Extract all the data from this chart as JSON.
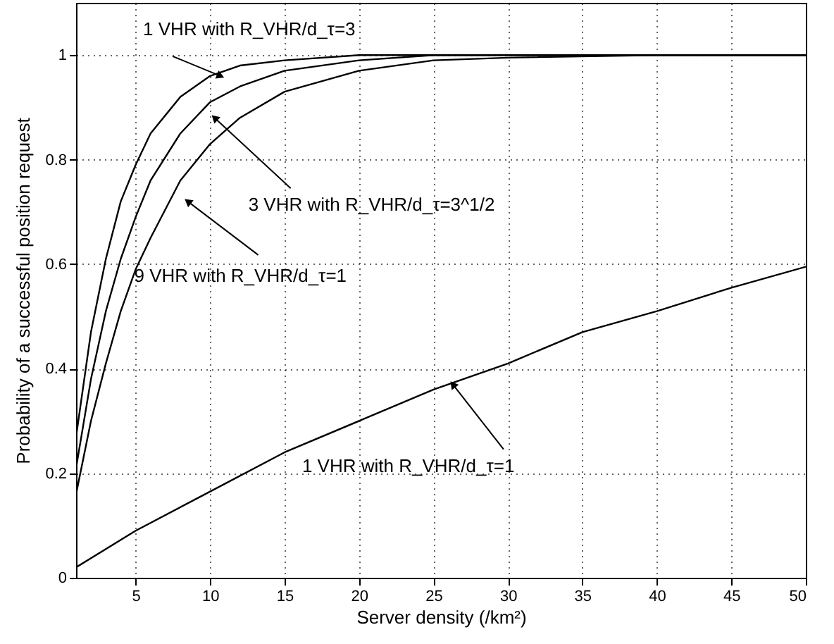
{
  "chart_data": {
    "type": "line",
    "xlabel": "Server density (/km²)",
    "ylabel": "Probability of a successful position request",
    "xlim": [
      1,
      50
    ],
    "ylim": [
      0,
      1.1
    ],
    "xticks": [
      5,
      10,
      15,
      20,
      25,
      30,
      35,
      40,
      45,
      50
    ],
    "yticks": [
      0,
      0.2,
      0.4,
      0.6,
      0.8,
      1
    ],
    "grid": true,
    "marker": "none",
    "line_style": "solid",
    "series": [
      {
        "color": "#000000",
        "x": [
          1,
          2,
          3,
          4,
          5,
          6,
          8,
          10,
          12,
          15,
          20,
          25,
          30,
          40,
          50
        ],
        "values": [
          0.27,
          0.47,
          0.61,
          0.72,
          0.79,
          0.85,
          0.92,
          0.96,
          0.98,
          0.99,
          1.0,
          1.0,
          1.0,
          1.0,
          1.0
        ]
      },
      {
        "color": "#000000",
        "x": [
          1,
          2,
          3,
          4,
          5,
          6,
          8,
          10,
          12,
          15,
          20,
          25,
          30,
          40,
          50
        ],
        "values": [
          0.21,
          0.38,
          0.51,
          0.61,
          0.69,
          0.76,
          0.85,
          0.91,
          0.94,
          0.97,
          0.99,
          1.0,
          1.0,
          1.0,
          1.0
        ]
      },
      {
        "color": "#000000",
        "x": [
          1,
          2,
          3,
          4,
          5,
          6,
          8,
          10,
          12,
          15,
          20,
          25,
          30,
          40,
          50
        ],
        "values": [
          0.16,
          0.3,
          0.41,
          0.51,
          0.59,
          0.65,
          0.76,
          0.83,
          0.88,
          0.93,
          0.97,
          0.99,
          0.995,
          1.0,
          1.0
        ]
      },
      {
        "color": "#000000",
        "x": [
          1,
          5,
          10,
          15,
          20,
          25,
          30,
          35,
          40,
          45,
          50
        ],
        "values": [
          0.02,
          0.09,
          0.165,
          0.24,
          0.3,
          0.36,
          0.41,
          0.47,
          0.51,
          0.555,
          0.595
        ]
      }
    ],
    "annotations": [
      {
        "text": "1 VHR with R_VHR/d_τ=3",
        "x": 10.7,
        "y": 0.96
      },
      {
        "text": "3 VHR with R_VHR/d_τ=3^1/2",
        "x": 10.3,
        "y": 0.88
      },
      {
        "text": "9 VHR with R_VHR/d_τ=1",
        "x": 8.5,
        "y": 0.72
      },
      {
        "text": "1 VHR with R_VHR/d_τ=1",
        "x": 26.3,
        "y": 0.37
      }
    ]
  }
}
